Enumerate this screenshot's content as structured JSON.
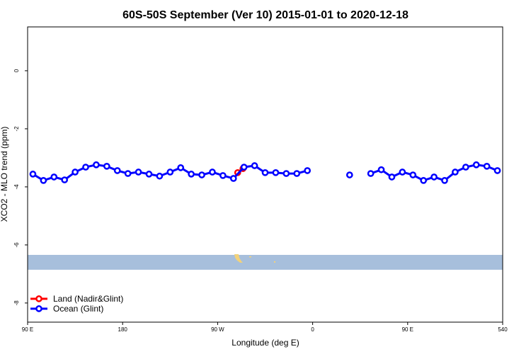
{
  "chart_data": {
    "type": "line",
    "title": "60S-50S September (Ver 10)   2015-01-01 to 2020-12-18",
    "x_label": "Longitude (deg E)",
    "y_label": "XCO2 - MLO trend (ppm)",
    "xlim": [
      90,
      540
    ],
    "ylim": [
      -8.66,
      1.51
    ],
    "xticks": [
      {
        "value": 90,
        "label": "90 E"
      },
      180,
      {
        "value": 270,
        "label": "90 W"
      },
      {
        "value": 360,
        "label": "0"
      },
      {
        "value": 450,
        "label": "90 E"
      },
      540
    ],
    "yticks": [
      0,
      -2,
      -4,
      -6,
      -8
    ],
    "legend": "bottom-left",
    "series": [
      {
        "name": "Land (Nadir&Glint)",
        "color": "#ff0000",
        "x": [
          289,
          294
        ],
        "values": [
          -3.51,
          -3.37
        ]
      },
      {
        "name": "Ocean (Glint)",
        "color": "#0000ff",
        "x": [
          95,
          105,
          115,
          125,
          135,
          145,
          155,
          165,
          175,
          185,
          195,
          205,
          215,
          225,
          235,
          245,
          255,
          265,
          275,
          285,
          295,
          305,
          315,
          325,
          335,
          345,
          355,
          365,
          375,
          385,
          395,
          405,
          415,
          425,
          435,
          445,
          455,
          465,
          475,
          485,
          495,
          505,
          515,
          525,
          535
        ],
        "values": [
          -3.56,
          -3.78,
          -3.66,
          -3.76,
          -3.49,
          -3.32,
          -3.24,
          -3.29,
          -3.44,
          -3.54,
          -3.49,
          -3.56,
          -3.63,
          -3.49,
          -3.34,
          -3.56,
          -3.59,
          -3.49,
          -3.61,
          -3.71,
          -3.32,
          -3.27,
          -3.51,
          -3.51,
          -3.54,
          -3.54,
          -3.44,
          null,
          null,
          null,
          -3.59,
          null,
          -3.54,
          -3.41,
          -3.66,
          -3.49,
          -3.59,
          -3.78,
          -3.66,
          -3.78,
          -3.49,
          -3.32,
          -3.24,
          -3.29,
          -3.44
        ]
      }
    ]
  }
}
